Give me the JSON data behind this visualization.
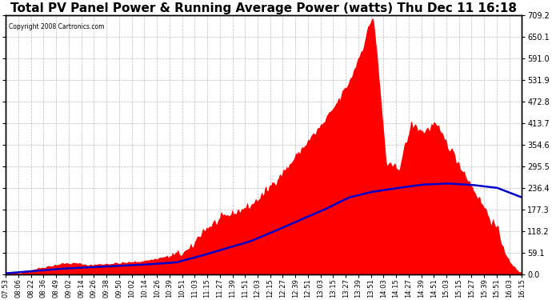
{
  "title": "Total PV Panel Power & Running Average Power (watts) Thu Dec 11 16:18",
  "copyright": "Copyright 2008 Cartronics.com",
  "yticks": [
    0.0,
    59.1,
    118.2,
    177.3,
    236.4,
    295.5,
    354.6,
    413.7,
    472.8,
    531.9,
    591.0,
    650.1,
    709.2
  ],
  "ymax": 709.2,
  "ymin": 0.0,
  "bar_color": "#FF0000",
  "line_color": "#0000CC",
  "background_color": "#FFFFFF",
  "grid_color": "#AAAAAA",
  "title_fontsize": 11,
  "xtick_labels": [
    "07:53",
    "08:06",
    "08:22",
    "08:36",
    "08:49",
    "09:02",
    "09:14",
    "09:26",
    "09:38",
    "09:50",
    "10:02",
    "10:14",
    "10:26",
    "10:39",
    "10:51",
    "11:03",
    "11:15",
    "11:27",
    "11:39",
    "11:51",
    "12:03",
    "12:15",
    "12:27",
    "12:39",
    "12:51",
    "13:03",
    "13:15",
    "13:27",
    "13:39",
    "13:51",
    "14:03",
    "14:15",
    "14:27",
    "14:39",
    "14:51",
    "15:03",
    "15:15",
    "15:27",
    "15:39",
    "15:51",
    "16:03",
    "16:15"
  ],
  "pv_keypoints_hours": [
    7.883,
    8.1,
    8.5,
    8.817,
    9.033,
    9.233,
    9.433,
    9.65,
    9.833,
    10.033,
    10.233,
    10.65,
    10.85,
    11.05,
    11.25,
    11.45,
    11.65,
    11.85,
    12.05,
    12.25,
    12.45,
    12.65,
    12.85,
    13.05,
    13.25,
    13.45,
    13.65,
    13.817,
    13.85,
    14.05,
    14.25,
    14.45,
    14.65,
    14.817,
    15.05,
    15.25,
    15.45,
    15.65,
    15.85,
    16.05,
    16.25
  ],
  "pv_keypoints_watts": [
    0,
    5,
    20,
    30,
    30,
    25,
    28,
    30,
    32,
    35,
    40,
    55,
    65,
    118,
    140,
    160,
    175,
    190,
    220,
    260,
    295,
    340,
    380,
    420,
    472,
    531,
    620,
    709,
    680,
    295,
    295,
    413,
    390,
    413,
    354,
    295,
    236,
    177,
    118,
    30,
    0
  ],
  "avg_keypoints_hours": [
    7.883,
    8.817,
    9.433,
    10.05,
    10.65,
    11.05,
    11.45,
    11.85,
    12.25,
    12.65,
    13.05,
    13.45,
    13.817,
    14.25,
    14.65,
    15.05,
    15.45,
    15.85,
    16.25
  ],
  "avg_keypoints_watts": [
    2,
    15,
    20,
    25,
    32,
    50,
    70,
    90,
    118,
    148,
    177,
    210,
    225,
    236,
    245,
    248,
    244,
    236,
    210
  ]
}
